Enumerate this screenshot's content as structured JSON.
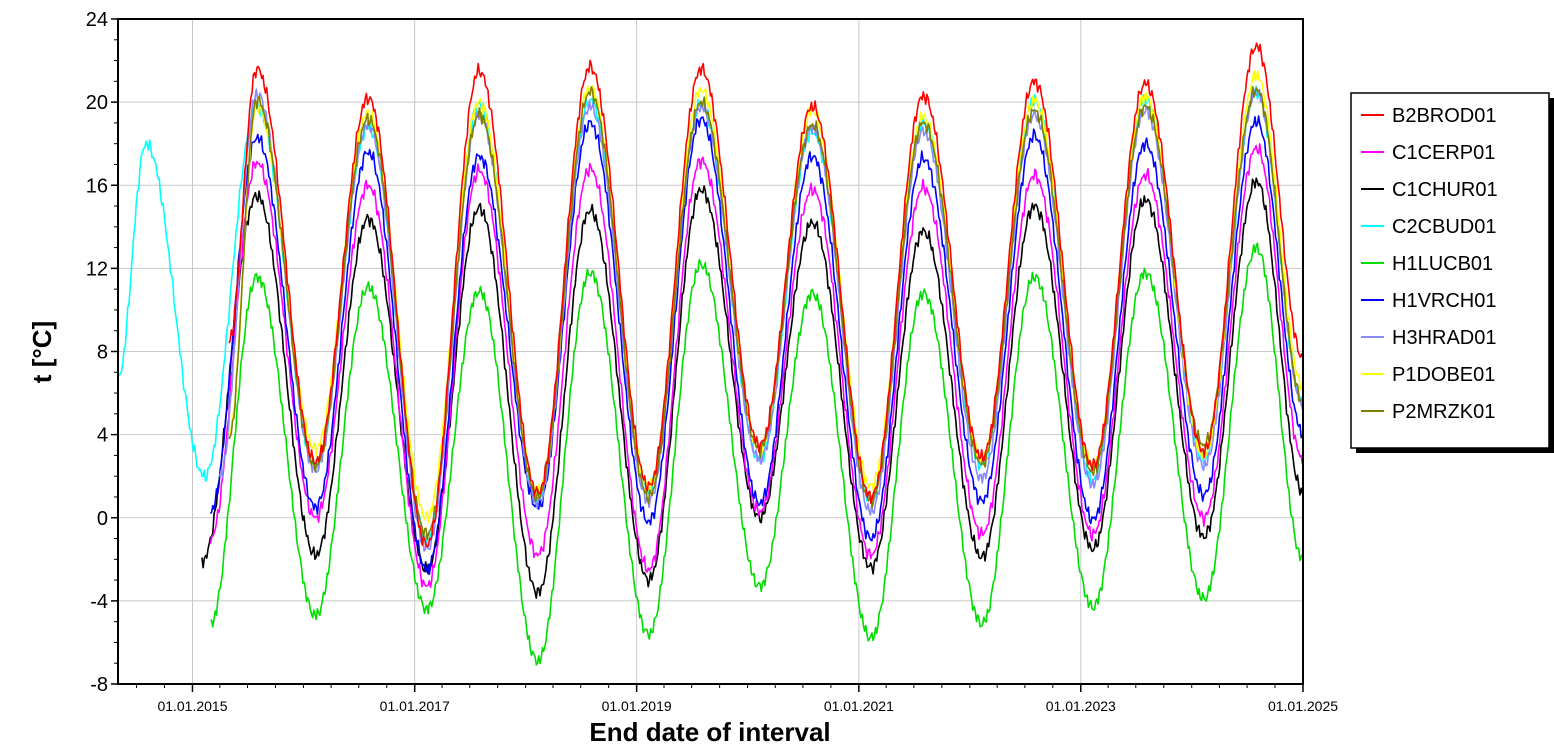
{
  "chart_data": {
    "type": "line",
    "xlabel": "End date of interval",
    "ylabel": "t [°C]",
    "ylim": [
      -8,
      24
    ],
    "yticks": [
      -8,
      -4,
      0,
      4,
      8,
      12,
      16,
      20,
      24
    ],
    "xlim": [
      "2014-05-01",
      "2025-01-01"
    ],
    "xticks": [
      "01.01.2015",
      "01.01.2017",
      "01.01.2019",
      "01.01.2021",
      "01.01.2023",
      "01.01.2025"
    ],
    "grid": true,
    "legend_position": "right",
    "series": [
      {
        "name": "B2BROD01",
        "color": "#ff0000",
        "start": "2015-05-01",
        "end": "2025-01-01",
        "peaks": [
          21.6,
          20.2,
          21.5,
          21.7,
          21.6,
          19.8,
          20.3,
          21.0,
          20.9,
          22.7
        ],
        "troughs": [
          8.5,
          2.7,
          -1.3,
          1.2,
          1.5,
          3.5,
          1.0,
          2.9,
          2.5,
          3.2
        ]
      },
      {
        "name": "C1CERP01",
        "color": "#ff00ff",
        "start": "2015-03-01",
        "end": "2025-01-01",
        "peaks": [
          17.1,
          16.0,
          16.7,
          16.8,
          17.2,
          15.8,
          15.9,
          16.5,
          16.5,
          17.8
        ],
        "troughs": [
          -1.0,
          0.0,
          -3.3,
          -1.8,
          -2.5,
          0.3,
          -1.8,
          -0.8,
          -0.8,
          0.0
        ]
      },
      {
        "name": "C1CHUR01",
        "color": "#000000",
        "start": "2015-02-01",
        "end": "2025-01-01",
        "peaks": [
          15.5,
          14.4,
          14.9,
          14.8,
          15.8,
          14.2,
          13.8,
          15.0,
          15.3,
          16.2
        ],
        "troughs": [
          -2.1,
          -1.8,
          -2.5,
          -3.6,
          -3.0,
          0.0,
          -2.4,
          -1.9,
          -1.5,
          -0.9
        ]
      },
      {
        "name": "C2CBUD01",
        "color": "#00ffff",
        "start": "2014-05-01",
        "end": "2025-01-01",
        "peaks": [
          18.0,
          19.8,
          18.8,
          19.9,
          20.1,
          19.9,
          18.6,
          19.0,
          20.1,
          20.2,
          20.5
        ],
        "troughs": [
          6.7,
          2.0,
          2.5,
          -1.0,
          0.8,
          1.3,
          2.8,
          0.9,
          2.5,
          1.8,
          2.8
        ]
      },
      {
        "name": "H1LUCB01",
        "color": "#00dd00",
        "start": "2015-03-01",
        "end": "2025-01-01",
        "peaks": [
          11.6,
          11.1,
          10.9,
          11.8,
          12.2,
          10.8,
          10.8,
          11.6,
          11.8,
          13.0
        ],
        "troughs": [
          -5.1,
          -4.7,
          -4.4,
          -6.9,
          -5.6,
          -3.3,
          -5.8,
          -5.1,
          -4.3,
          -3.9
        ]
      },
      {
        "name": "H1VRCH01",
        "color": "#0000ff",
        "start": "2015-03-01",
        "end": "2025-01-01",
        "peaks": [
          18.3,
          17.6,
          17.4,
          19.0,
          19.2,
          17.4,
          17.3,
          18.4,
          18.0,
          19.1
        ],
        "troughs": [
          0.3,
          0.5,
          -2.5,
          0.5,
          -0.2,
          0.7,
          -1.0,
          0.8,
          -0.1,
          1.1
        ]
      },
      {
        "name": "H3HRAD01",
        "color": "#8888ff",
        "start": "2015-04-01",
        "end": "2025-01-01",
        "peaks": [
          20.4,
          18.9,
          19.4,
          19.8,
          19.8,
          18.8,
          18.6,
          19.4,
          19.6,
          20.5
        ],
        "troughs": [
          2.0,
          2.3,
          -1.5,
          0.7,
          0.8,
          2.8,
          0.3,
          1.9,
          1.6,
          2.5
        ]
      },
      {
        "name": "P1DOBE01",
        "color": "#ffff00",
        "start": "2015-05-01",
        "end": "2025-01-01",
        "peaks": [
          19.8,
          19.5,
          20.0,
          20.7,
          20.6,
          19.6,
          19.3,
          20.1,
          20.3,
          21.3
        ],
        "troughs": [
          4.0,
          3.3,
          0.0,
          1.2,
          1.5,
          3.3,
          1.5,
          2.9,
          2.5,
          3.0
        ]
      },
      {
        "name": "P2MRZK01",
        "color": "#808000",
        "start": "2015-05-01",
        "end": "2025-01-01",
        "peaks": [
          20.1,
          19.2,
          19.4,
          20.5,
          20.0,
          18.9,
          19.0,
          19.6,
          19.8,
          20.6
        ],
        "troughs": [
          3.8,
          2.5,
          -0.8,
          1.0,
          1.0,
          3.3,
          0.8,
          2.6,
          2.2,
          3.5
        ]
      }
    ]
  }
}
